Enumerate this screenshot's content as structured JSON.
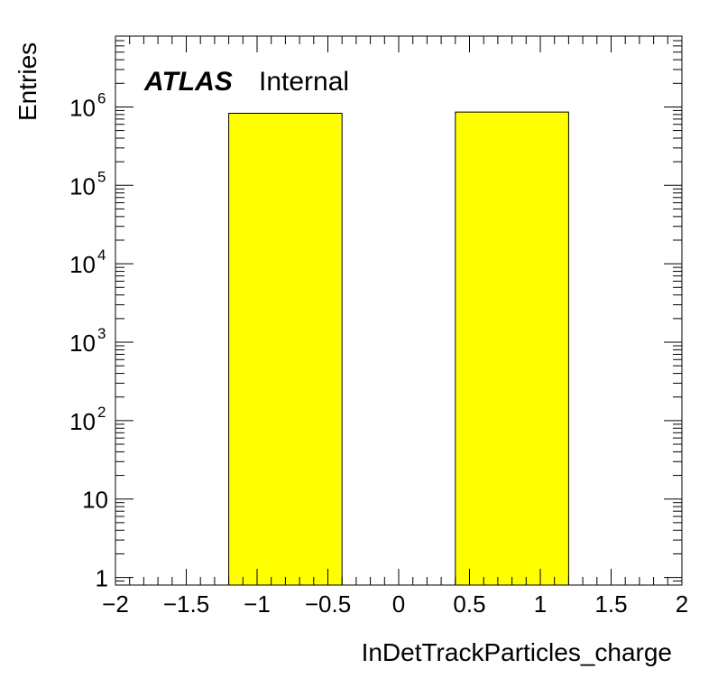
{
  "chart_data": {
    "type": "bar",
    "xlabel": "InDetTrackParticles_charge",
    "ylabel": "Entries",
    "title": "",
    "label_bold": "ATLAS",
    "label_normal": "Internal",
    "xlim": [
      -2,
      2
    ],
    "ylim": [
      0.8,
      8000000
    ],
    "y_scale": "log",
    "bins": [
      {
        "x_low": -1.2,
        "x_high": -0.4,
        "value": 830000
      },
      {
        "x_low": 0.4,
        "x_high": 1.2,
        "value": 860000
      }
    ],
    "fill_color": "#ffff00",
    "x_ticks": [
      {
        "value": -2,
        "label": "−2"
      },
      {
        "value": -1.5,
        "label": "−1.5"
      },
      {
        "value": -1,
        "label": "−1"
      },
      {
        "value": -0.5,
        "label": "−0.5"
      },
      {
        "value": 0,
        "label": "0"
      },
      {
        "value": 0.5,
        "label": "0.5"
      },
      {
        "value": 1,
        "label": "1"
      },
      {
        "value": 1.5,
        "label": "1.5"
      },
      {
        "value": 2,
        "label": "2"
      }
    ],
    "y_ticks": [
      {
        "value": 1,
        "base": "1",
        "exp": ""
      },
      {
        "value": 10,
        "base": "10",
        "exp": ""
      },
      {
        "value": 100,
        "base": "10",
        "exp": "2"
      },
      {
        "value": 1000,
        "base": "10",
        "exp": "3"
      },
      {
        "value": 10000,
        "base": "10",
        "exp": "4"
      },
      {
        "value": 100000,
        "base": "10",
        "exp": "5"
      },
      {
        "value": 1000000,
        "base": "10",
        "exp": "6"
      }
    ],
    "grid": false,
    "legend": "none"
  }
}
